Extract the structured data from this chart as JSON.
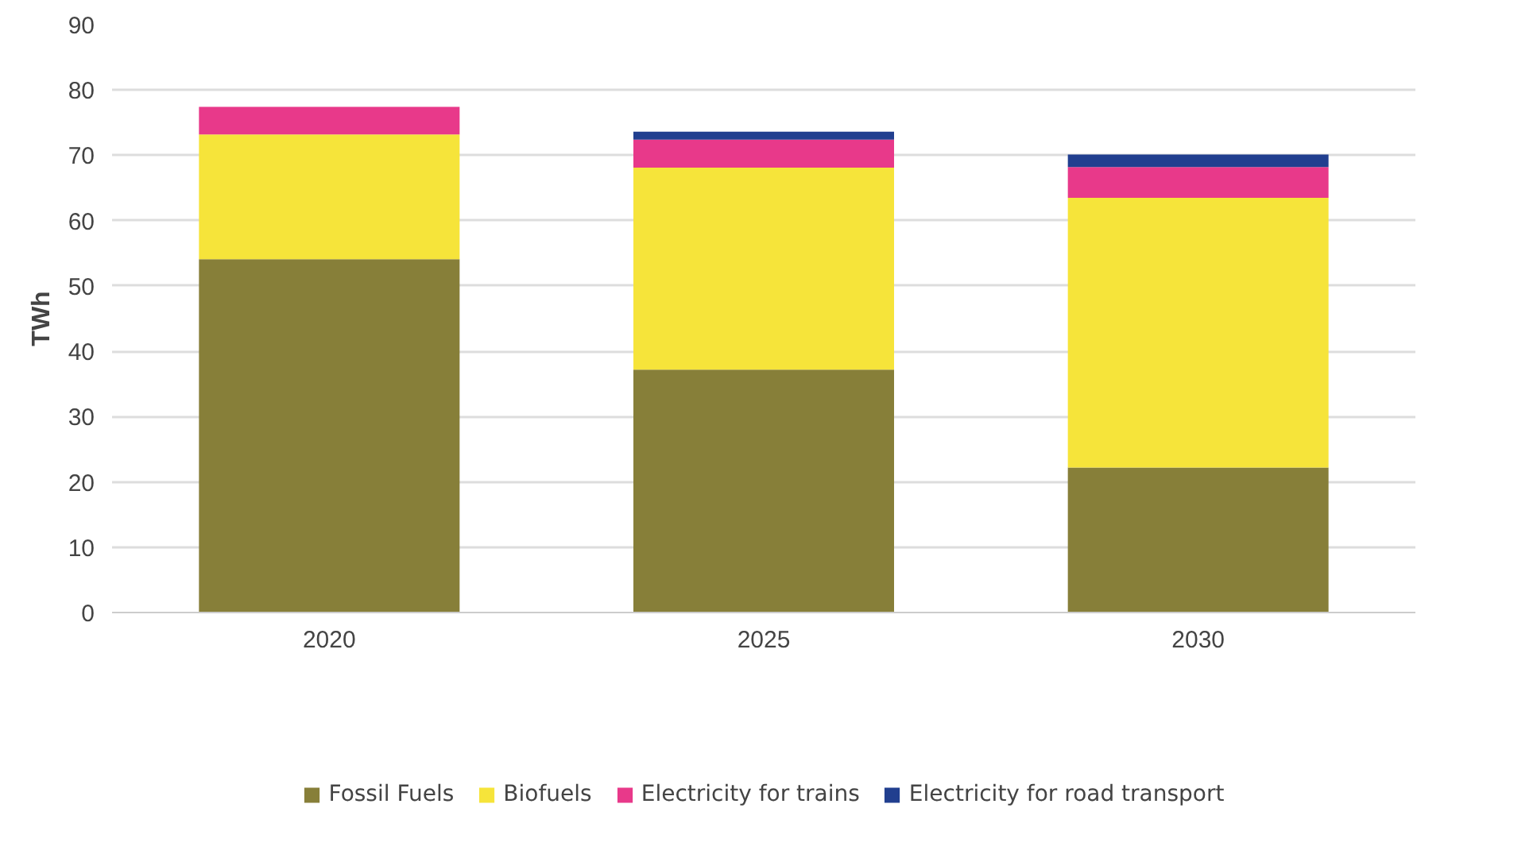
{
  "chart_data": {
    "type": "bar",
    "stacked": true,
    "ylabel": "TWh",
    "categories": [
      "2020",
      "2025",
      "2030"
    ],
    "series": [
      {
        "name": "Fossil Fuels",
        "color": "#877f39",
        "values": [
          54.1,
          37.2,
          22.2
        ]
      },
      {
        "name": "Biofuels",
        "color": "#f6e43a",
        "values": [
          19.1,
          30.9,
          41.3
        ]
      },
      {
        "name": "Electricity for trains",
        "color": "#e8398a",
        "values": [
          4.2,
          4.3,
          4.7
        ]
      },
      {
        "name": "Electricity for road transport",
        "color": "#213f8f",
        "values": [
          0,
          1.2,
          1.9
        ]
      }
    ],
    "ylim": [
      0,
      90
    ],
    "yticks": [
      0,
      10,
      20,
      30,
      40,
      50,
      60,
      70,
      80,
      90
    ],
    "grid": "y",
    "legend": "bottom"
  }
}
